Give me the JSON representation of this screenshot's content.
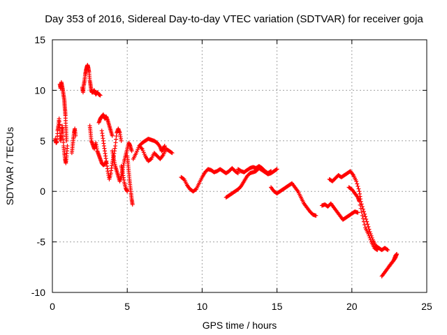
{
  "chart_data": {
    "type": "scatter",
    "title": "Day 353 of 2016, Sidereal Day-to-day VTEC variation (SDTVAR) for receiver goja",
    "xlabel": "GPS time / hours",
    "ylabel": "SDTVAR / TECUs",
    "xlim": [
      0,
      25
    ],
    "ylim": [
      -10,
      15
    ],
    "xticks": [
      0,
      5,
      10,
      15,
      20,
      25
    ],
    "yticks": [
      -10,
      -5,
      0,
      5,
      10,
      15
    ],
    "xtick_labels": [
      "0",
      "5",
      "10",
      "15",
      "20",
      "25"
    ],
    "ytick_labels": [
      "-10",
      "-5",
      "0",
      "5",
      "10",
      "15"
    ],
    "grid": true,
    "marker": "+",
    "series": [
      {
        "name": "SDTVAR",
        "color": "#ff0000",
        "segments": [
          [
            [
              0.2,
              5.2
            ],
            [
              0.25,
              4.8
            ],
            [
              0.3,
              4.9
            ],
            [
              0.35,
              6.0
            ],
            [
              0.4,
              6.5
            ],
            [
              0.45,
              7.2
            ],
            [
              0.5,
              6.0
            ],
            [
              0.55,
              5.0
            ],
            [
              0.6,
              5.5
            ],
            [
              0.65,
              6.5
            ],
            [
              0.7,
              5.8
            ],
            [
              0.75,
              4.5
            ],
            [
              0.8,
              3.8
            ],
            [
              0.85,
              3.2
            ],
            [
              0.9,
              2.8
            ],
            [
              0.95,
              3.5
            ],
            [
              1.0,
              4.5
            ]
          ],
          [
            [
              0.5,
              10.6
            ],
            [
              0.55,
              10.2
            ],
            [
              0.6,
              10.8
            ],
            [
              0.65,
              10.4
            ],
            [
              0.7,
              10.0
            ],
            [
              0.75,
              9.5
            ],
            [
              0.8,
              9.0
            ],
            [
              0.82,
              8.5
            ],
            [
              0.85,
              8.0
            ],
            [
              0.87,
              7.5
            ],
            [
              0.9,
              6.5
            ],
            [
              0.92,
              5.8
            ],
            [
              0.95,
              5.0
            ]
          ],
          [
            [
              1.3,
              3.8
            ],
            [
              1.35,
              4.5
            ],
            [
              1.4,
              5.2
            ],
            [
              1.45,
              5.8
            ],
            [
              1.5,
              6.2
            ],
            [
              1.55,
              5.5
            ]
          ],
          [
            [
              2.0,
              10.3
            ],
            [
              2.05,
              9.8
            ],
            [
              2.1,
              10.5
            ],
            [
              2.15,
              11.0
            ],
            [
              2.2,
              11.6
            ],
            [
              2.25,
              12.0
            ],
            [
              2.3,
              12.3
            ],
            [
              2.35,
              12.5
            ],
            [
              2.4,
              12.2
            ],
            [
              2.45,
              11.8
            ],
            [
              2.5,
              11.0
            ],
            [
              2.55,
              10.5
            ],
            [
              2.6,
              10.0
            ],
            [
              2.65,
              9.8
            ],
            [
              2.7,
              9.8
            ],
            [
              2.8,
              10.0
            ],
            [
              2.9,
              9.6
            ],
            [
              3.0,
              9.8
            ],
            [
              3.1,
              9.6
            ],
            [
              3.2,
              9.5
            ]
          ],
          [
            [
              2.5,
              6.5
            ],
            [
              2.55,
              5.8
            ],
            [
              2.6,
              5.0
            ],
            [
              2.7,
              4.6
            ],
            [
              2.8,
              4.2
            ],
            [
              2.9,
              4.8
            ],
            [
              3.0,
              4.0
            ],
            [
              3.1,
              3.6
            ],
            [
              3.2,
              3.2
            ],
            [
              3.3,
              2.8
            ],
            [
              3.4,
              2.6
            ],
            [
              3.5,
              2.7
            ],
            [
              3.6,
              2.9
            ]
          ],
          [
            [
              3.1,
              6.8
            ],
            [
              3.2,
              7.2
            ],
            [
              3.3,
              7.4
            ],
            [
              3.4,
              7.6
            ],
            [
              3.5,
              7.2
            ],
            [
              3.6,
              7.4
            ],
            [
              3.7,
              7.0
            ],
            [
              3.8,
              6.5
            ],
            [
              3.9,
              6.0
            ],
            [
              4.0,
              5.5
            ]
          ],
          [
            [
              3.3,
              6.0
            ],
            [
              3.4,
              5.0
            ],
            [
              3.5,
              4.0
            ],
            [
              3.6,
              3.0
            ],
            [
              3.7,
              2.0
            ],
            [
              3.8,
              1.2
            ],
            [
              3.9,
              1.8
            ],
            [
              4.0,
              2.8
            ],
            [
              4.1,
              3.5
            ],
            [
              4.2,
              4.5
            ],
            [
              4.3,
              5.8
            ],
            [
              4.4,
              6.2
            ],
            [
              4.5,
              5.8
            ],
            [
              4.6,
              5.0
            ]
          ],
          [
            [
              4.0,
              4.0
            ],
            [
              4.1,
              3.2
            ],
            [
              4.2,
              2.5
            ],
            [
              4.3,
              2.0
            ],
            [
              4.4,
              1.5
            ],
            [
              4.5,
              1.0
            ],
            [
              4.6,
              1.5
            ],
            [
              4.7,
              2.2
            ],
            [
              4.8,
              3.0
            ],
            [
              4.9,
              3.6
            ],
            [
              5.0,
              4.2
            ],
            [
              5.1,
              4.8
            ],
            [
              5.2,
              4.5
            ],
            [
              5.3,
              4.0
            ]
          ],
          [
            [
              5.0,
              3.5
            ],
            [
              5.05,
              2.8
            ],
            [
              5.1,
              2.0
            ],
            [
              5.15,
              1.2
            ],
            [
              5.2,
              0.5
            ],
            [
              5.25,
              -0.2
            ],
            [
              5.3,
              -0.8
            ],
            [
              5.35,
              -1.3
            ]
          ],
          [
            [
              4.6,
              2.5
            ],
            [
              4.7,
              1.8
            ],
            [
              4.8,
              0.9
            ],
            [
              4.9,
              0.3
            ],
            [
              5.0,
              0.0
            ]
          ],
          [
            [
              5.4,
              3.2
            ],
            [
              5.6,
              3.8
            ],
            [
              5.8,
              4.5
            ],
            [
              6.0,
              4.2
            ],
            [
              6.2,
              3.5
            ],
            [
              6.4,
              3.0
            ],
            [
              6.6,
              3.2
            ],
            [
              6.8,
              3.8
            ],
            [
              7.0,
              3.5
            ],
            [
              7.2,
              3.2
            ],
            [
              7.4,
              3.6
            ],
            [
              7.6,
              4.2
            ],
            [
              7.8,
              4.0
            ],
            [
              8.0,
              3.8
            ]
          ],
          [
            [
              5.8,
              4.5
            ],
            [
              6.0,
              4.8
            ],
            [
              6.2,
              5.0
            ],
            [
              6.4,
              5.2
            ],
            [
              6.6,
              5.1
            ],
            [
              6.8,
              5.0
            ],
            [
              7.0,
              4.8
            ],
            [
              7.2,
              4.4
            ],
            [
              7.3,
              4.0
            ],
            [
              7.4,
              4.2
            ],
            [
              7.5,
              4.5
            ]
          ],
          [
            [
              8.6,
              1.4
            ],
            [
              8.8,
              1.2
            ],
            [
              9.0,
              0.6
            ],
            [
              9.2,
              0.2
            ],
            [
              9.4,
              0.0
            ],
            [
              9.6,
              0.2
            ],
            [
              9.8,
              0.8
            ],
            [
              10.0,
              1.4
            ],
            [
              10.2,
              1.9
            ],
            [
              10.4,
              2.2
            ],
            [
              10.6,
              2.1
            ],
            [
              10.8,
              1.9
            ],
            [
              11.0,
              2.0
            ],
            [
              11.2,
              2.2
            ],
            [
              11.4,
              2.0
            ],
            [
              11.6,
              1.8
            ],
            [
              11.8,
              2.0
            ],
            [
              12.0,
              2.3
            ],
            [
              12.2,
              2.0
            ],
            [
              12.4,
              1.8
            ]
          ],
          [
            [
              11.6,
              -0.6
            ],
            [
              11.8,
              -0.4
            ],
            [
              12.0,
              -0.2
            ],
            [
              12.2,
              0.0
            ],
            [
              12.4,
              0.2
            ],
            [
              12.6,
              0.5
            ],
            [
              12.8,
              1.0
            ],
            [
              13.0,
              1.5
            ],
            [
              13.2,
              1.8
            ],
            [
              13.4,
              1.9
            ],
            [
              13.6,
              2.0
            ],
            [
              13.8,
              2.3
            ],
            [
              14.0,
              2.1
            ],
            [
              14.2,
              1.9
            ],
            [
              14.4,
              1.7
            ],
            [
              14.6,
              1.8
            ],
            [
              14.8,
              2.0
            ],
            [
              15.0,
              2.2
            ]
          ],
          [
            [
              12.4,
              2.2
            ],
            [
              12.6,
              2.0
            ],
            [
              12.8,
              1.9
            ],
            [
              13.0,
              2.1
            ],
            [
              13.2,
              2.3
            ],
            [
              13.4,
              2.4
            ],
            [
              13.6,
              2.3
            ],
            [
              13.8,
              2.5
            ],
            [
              14.0,
              2.3
            ],
            [
              14.2,
              2.0
            ],
            [
              14.4,
              1.8
            ],
            [
              14.6,
              2.0
            ]
          ],
          [
            [
              14.6,
              0.4
            ],
            [
              14.8,
              0.0
            ],
            [
              15.0,
              -0.2
            ],
            [
              15.2,
              0.0
            ],
            [
              15.4,
              0.2
            ],
            [
              15.6,
              0.4
            ],
            [
              15.8,
              0.6
            ],
            [
              16.0,
              0.8
            ],
            [
              16.2,
              0.4
            ],
            [
              16.4,
              0.0
            ],
            [
              16.6,
              -0.6
            ],
            [
              16.8,
              -1.2
            ],
            [
              17.0,
              -1.6
            ],
            [
              17.2,
              -2.0
            ],
            [
              17.4,
              -2.3
            ],
            [
              17.6,
              -2.4
            ]
          ],
          [
            [
              18.0,
              -1.4
            ],
            [
              18.2,
              -1.3
            ],
            [
              18.4,
              -1.5
            ],
            [
              18.6,
              -1.2
            ],
            [
              18.8,
              -1.6
            ],
            [
              19.0,
              -2.0
            ],
            [
              19.2,
              -2.4
            ],
            [
              19.4,
              -2.8
            ],
            [
              19.6,
              -2.6
            ],
            [
              19.8,
              -2.4
            ],
            [
              20.0,
              -2.2
            ],
            [
              20.2,
              -2.0
            ],
            [
              20.4,
              -2.1
            ]
          ],
          [
            [
              18.5,
              1.2
            ],
            [
              18.7,
              1.0
            ],
            [
              18.9,
              1.3
            ],
            [
              19.1,
              1.6
            ],
            [
              19.3,
              1.4
            ],
            [
              19.5,
              1.6
            ],
            [
              19.7,
              1.8
            ],
            [
              19.9,
              2.0
            ],
            [
              20.1,
              1.6
            ],
            [
              20.3,
              1.0
            ],
            [
              20.5,
              0.0
            ],
            [
              20.6,
              -1.0
            ],
            [
              20.8,
              -2.0
            ],
            [
              21.0,
              -3.0
            ],
            [
              21.2,
              -4.0
            ],
            [
              21.4,
              -4.8
            ],
            [
              21.6,
              -5.4
            ],
            [
              21.8,
              -5.6
            ],
            [
              22.0,
              -5.8
            ],
            [
              22.2,
              -5.6
            ],
            [
              22.4,
              -5.8
            ]
          ],
          [
            [
              19.8,
              0.4
            ],
            [
              20.0,
              0.2
            ],
            [
              20.2,
              -0.2
            ],
            [
              20.4,
              -0.6
            ],
            [
              20.5,
              -1.0
            ],
            [
              20.7,
              -2.4
            ],
            [
              20.9,
              -3.6
            ],
            [
              21.1,
              -4.2
            ],
            [
              21.3,
              -5.0
            ],
            [
              21.5,
              -5.6
            ],
            [
              21.7,
              -5.8
            ]
          ],
          [
            [
              22.0,
              -8.4
            ],
            [
              22.2,
              -8.0
            ],
            [
              22.4,
              -7.6
            ],
            [
              22.6,
              -7.2
            ],
            [
              22.8,
              -6.8
            ],
            [
              22.9,
              -6.4
            ],
            [
              23.0,
              -6.2
            ],
            [
              22.9,
              -6.6
            ],
            [
              22.7,
              -7.0
            ],
            [
              22.5,
              -7.4
            ]
          ]
        ]
      }
    ]
  }
}
